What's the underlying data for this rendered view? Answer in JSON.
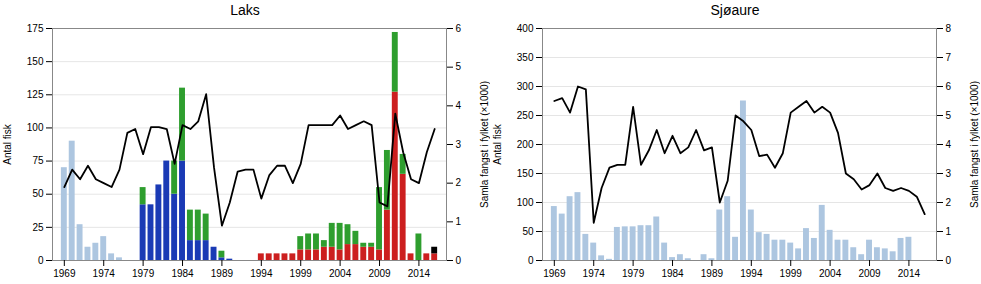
{
  "chart_data": [
    {
      "type": "bar",
      "title": "Laks",
      "stacked": true,
      "grid": true,
      "ylabel": "Antal fisk",
      "y2label": "Samla fangst i fylket (×1000)",
      "x": [
        1969,
        1970,
        1971,
        1972,
        1973,
        1974,
        1975,
        1976,
        1977,
        1978,
        1979,
        1980,
        1981,
        1982,
        1983,
        1984,
        1985,
        1986,
        1987,
        1988,
        1989,
        1990,
        1991,
        1992,
        1993,
        1994,
        1995,
        1996,
        1997,
        1998,
        1999,
        2000,
        2001,
        2002,
        2003,
        2004,
        2005,
        2006,
        2007,
        2008,
        2009,
        2010,
        2011,
        2012,
        2013,
        2014,
        2015,
        2016
      ],
      "xlim": [
        1967.5,
        2017.5
      ],
      "xticks": [
        1969,
        1974,
        1979,
        1984,
        1989,
        1994,
        1999,
        2004,
        2009,
        2014
      ],
      "ylim": [
        0,
        175
      ],
      "yticks": [
        0,
        25,
        50,
        75,
        100,
        125,
        150,
        175
      ],
      "y2lim": [
        0,
        6
      ],
      "y2ticks": [
        0,
        1,
        2,
        3,
        4,
        5,
        6
      ],
      "series": [
        {
          "color": "#adc6e0",
          "values": [
            70,
            90,
            27,
            10,
            13,
            18,
            5,
            2,
            0,
            0,
            0,
            0,
            0,
            0,
            0,
            0,
            0,
            0,
            0,
            0,
            0,
            0,
            0,
            0,
            0,
            0,
            0,
            0,
            0,
            0,
            0,
            0,
            0,
            0,
            0,
            0,
            0,
            0,
            0,
            0,
            0,
            0,
            0,
            0,
            0,
            0,
            0,
            0
          ]
        },
        {
          "color": "#1a3ab5",
          "values": [
            0,
            0,
            0,
            0,
            0,
            0,
            0,
            0,
            0,
            0,
            42,
            42,
            57,
            75,
            50,
            75,
            15,
            15,
            15,
            10,
            2,
            1,
            0,
            0,
            0,
            0,
            0,
            0,
            0,
            0,
            0,
            0,
            0,
            0,
            0,
            0,
            0,
            0,
            0,
            0,
            0,
            0,
            0,
            0,
            0,
            0,
            0,
            0
          ]
        },
        {
          "color": "#cc1f1f",
          "values": [
            0,
            0,
            0,
            0,
            0,
            0,
            0,
            0,
            0,
            0,
            0,
            0,
            0,
            0,
            0,
            0,
            0,
            0,
            0,
            0,
            0,
            0,
            0,
            0,
            0,
            5,
            5,
            5,
            5,
            5,
            8,
            8,
            8,
            10,
            10,
            8,
            12,
            12,
            10,
            10,
            8,
            38,
            127,
            65,
            5,
            0,
            5,
            5
          ]
        },
        {
          "color": "#2e9e2e",
          "values": [
            0,
            0,
            0,
            0,
            0,
            0,
            0,
            0,
            0,
            0,
            13,
            0,
            0,
            0,
            25,
            55,
            23,
            23,
            20,
            0,
            5,
            0,
            0,
            0,
            0,
            0,
            0,
            0,
            0,
            0,
            10,
            12,
            12,
            5,
            18,
            20,
            15,
            10,
            3,
            3,
            47,
            45,
            45,
            15,
            0,
            20,
            0,
            0
          ]
        },
        {
          "color": "#000000",
          "values": [
            0,
            0,
            0,
            0,
            0,
            0,
            0,
            0,
            0,
            0,
            0,
            0,
            0,
            0,
            0,
            0,
            0,
            0,
            0,
            0,
            0,
            0,
            0,
            0,
            0,
            0,
            0,
            0,
            0,
            0,
            0,
            0,
            0,
            0,
            0,
            0,
            0,
            0,
            0,
            0,
            0,
            0,
            0,
            0,
            0,
            0,
            0,
            5
          ]
        },
        {
          "type": "line",
          "axis": "y2",
          "color": "#000000",
          "values": [
            1.9,
            2.35,
            2.1,
            2.45,
            2.1,
            2.0,
            1.9,
            2.35,
            3.3,
            3.4,
            2.75,
            3.45,
            3.45,
            3.4,
            2.5,
            3.5,
            3.4,
            3.6,
            4.3,
            2.4,
            0.9,
            1.5,
            2.3,
            2.35,
            2.35,
            1.6,
            2.2,
            2.45,
            2.45,
            2.0,
            2.5,
            3.5,
            3.5,
            3.5,
            3.5,
            3.75,
            3.4,
            3.5,
            3.6,
            3.5,
            1.5,
            1.4,
            3.8,
            2.8,
            2.1,
            2.0,
            2.8,
            3.4
          ]
        }
      ]
    },
    {
      "type": "bar",
      "title": "Sjøaure",
      "grid": true,
      "ylabel": "Antal fisk",
      "y2label": "Samla fangst i fylket (×1000)",
      "x": [
        1969,
        1970,
        1971,
        1972,
        1973,
        1974,
        1975,
        1976,
        1977,
        1978,
        1979,
        1980,
        1981,
        1982,
        1983,
        1984,
        1985,
        1986,
        1987,
        1988,
        1989,
        1990,
        1991,
        1992,
        1993,
        1994,
        1995,
        1996,
        1997,
        1998,
        1999,
        2000,
        2001,
        2002,
        2003,
        2004,
        2005,
        2006,
        2007,
        2008,
        2009,
        2010,
        2011,
        2012,
        2013,
        2014,
        2015,
        2016
      ],
      "xlim": [
        1967.5,
        2017.5
      ],
      "xticks": [
        1969,
        1974,
        1979,
        1984,
        1989,
        1994,
        1999,
        2004,
        2009,
        2014
      ],
      "ylim": [
        0,
        400
      ],
      "yticks": [
        0,
        50,
        100,
        150,
        200,
        250,
        300,
        350,
        400
      ],
      "y2lim": [
        0,
        8
      ],
      "y2ticks": [
        0,
        1,
        2,
        3,
        4,
        5,
        6,
        7,
        8
      ],
      "series": [
        {
          "color": "#adc6e0",
          "values": [
            93,
            80,
            110,
            117,
            45,
            30,
            8,
            2,
            57,
            58,
            58,
            60,
            60,
            75,
            30,
            5,
            10,
            3,
            0,
            10,
            3,
            87,
            110,
            40,
            275,
            87,
            48,
            45,
            35,
            35,
            30,
            20,
            55,
            38,
            95,
            52,
            35,
            35,
            22,
            10,
            35,
            22,
            20,
            15,
            38,
            40,
            0,
            0
          ]
        },
        {
          "type": "line",
          "axis": "y2",
          "color": "#000000",
          "values": [
            5.5,
            5.6,
            5.1,
            6.0,
            5.9,
            1.3,
            2.5,
            3.2,
            3.3,
            3.3,
            5.3,
            3.3,
            3.8,
            4.5,
            3.7,
            4.3,
            3.7,
            3.9,
            4.5,
            3.8,
            3.9,
            2.0,
            2.75,
            5.0,
            4.8,
            4.5,
            3.6,
            3.65,
            3.2,
            3.7,
            5.1,
            5.3,
            5.5,
            5.1,
            5.3,
            5.1,
            4.4,
            3.0,
            2.8,
            2.45,
            2.6,
            3.0,
            2.5,
            2.4,
            2.5,
            2.4,
            2.2,
            1.6
          ]
        }
      ]
    }
  ]
}
